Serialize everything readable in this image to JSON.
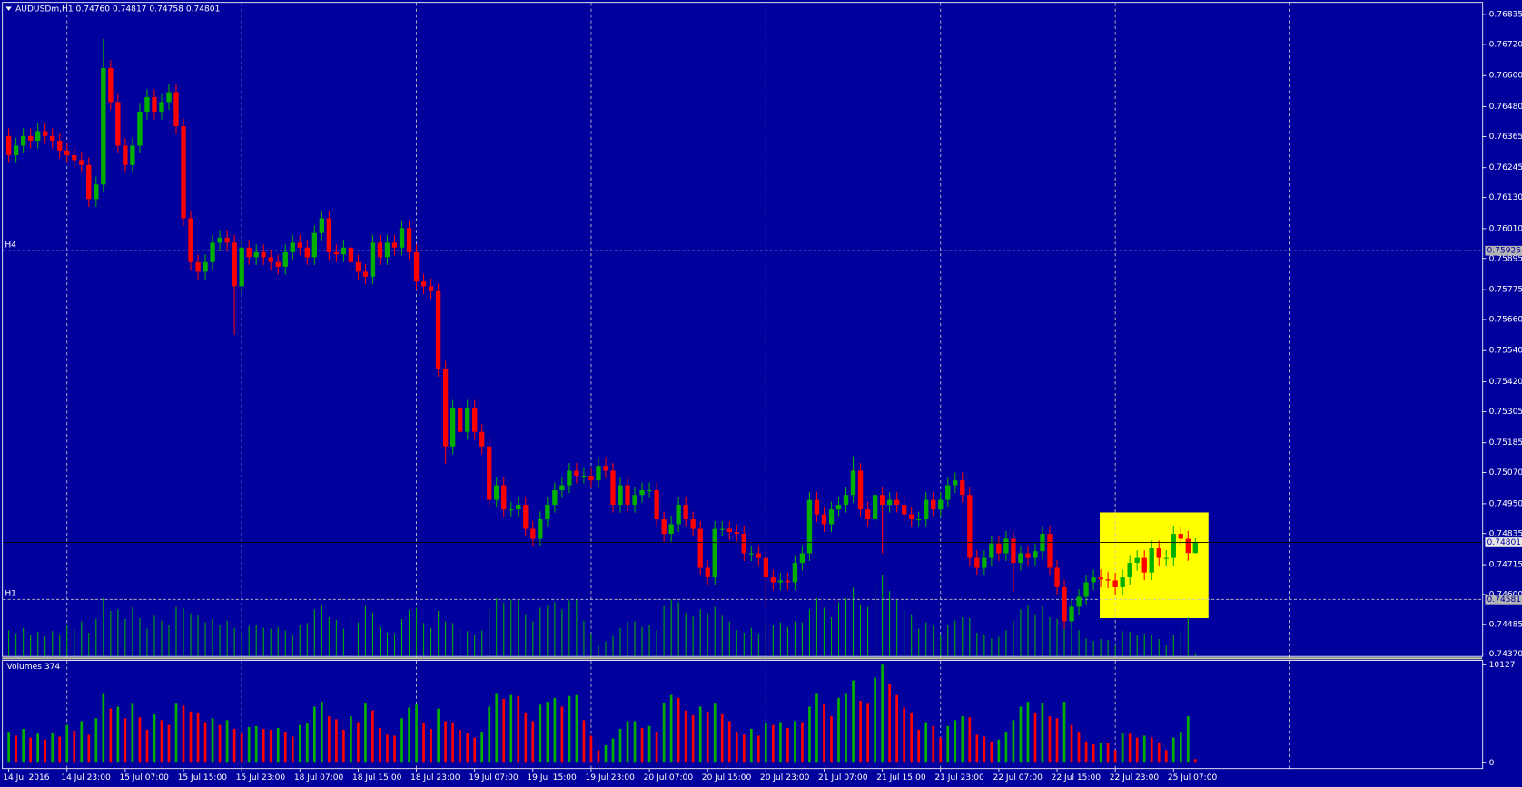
{
  "chart_data": {
    "type": "candlestick",
    "title": "AUDUSDm,H1  0.74760 0.74817 0.74758 0.74801",
    "categories": [
      "14 Jul 2016",
      null,
      null,
      null,
      null,
      null,
      null,
      null,
      "14 Jul 23:00",
      null,
      null,
      null,
      null,
      null,
      null,
      null,
      "15 Jul 07:00",
      null,
      null,
      null,
      null,
      null,
      null,
      null,
      "15 Jul 15:00",
      null,
      null,
      null,
      null,
      null,
      null,
      null,
      "15 Jul 23:00",
      null,
      null,
      null,
      null,
      null,
      null,
      null,
      "18 Jul 07:00",
      null,
      null,
      null,
      null,
      null,
      null,
      null,
      "18 Jul 15:00",
      null,
      null,
      null,
      null,
      null,
      null,
      null,
      "18 Jul 23:00",
      null,
      null,
      null,
      null,
      null,
      null,
      null,
      "19 Jul 07:00",
      null,
      null,
      null,
      null,
      null,
      null,
      null,
      "19 Jul 15:00",
      null,
      null,
      null,
      null,
      null,
      null,
      null,
      "19 Jul 23:00",
      null,
      null,
      null,
      null,
      null,
      null,
      null,
      "20 Jul 07:00",
      null,
      null,
      null,
      null,
      null,
      null,
      null,
      "20 Jul 15:00",
      null,
      null,
      null,
      null,
      null,
      null,
      null,
      "20 Jul 23:00",
      null,
      null,
      null,
      null,
      null,
      null,
      null,
      "21 Jul 07:00",
      null,
      null,
      null,
      null,
      null,
      null,
      null,
      "21 Jul 15:00",
      null,
      null,
      null,
      null,
      null,
      null,
      null,
      "21 Jul 23:00",
      null,
      null,
      null,
      null,
      null,
      null,
      null,
      "22 Jul 07:00",
      null,
      null,
      null,
      null,
      null,
      null,
      null,
      "22 Jul 15:00",
      null,
      null,
      null,
      null,
      null,
      null,
      null,
      "22 Jul 23:00",
      null,
      null,
      null,
      null,
      null,
      null,
      null,
      "25 Jul 07:00",
      null,
      null,
      null
    ],
    "open": [
      0.76367,
      0.76293,
      0.7633,
      0.76367,
      0.76349,
      0.76386,
      0.76367,
      0.76349,
      0.76311,
      0.76293,
      0.76274,
      0.76255,
      0.76124,
      0.7618,
      0.76629,
      0.76498,
      0.7633,
      0.76255,
      0.7633,
      0.76461,
      0.76517,
      0.76461,
      0.76498,
      0.76536,
      0.76405,
      0.7605,
      0.75881,
      0.75844,
      0.75881,
      0.75956,
      0.75975,
      0.75956,
      0.75788,
      0.75937,
      0.759,
      0.75919,
      0.759,
      0.75881,
      0.75863,
      0.75919,
      0.75956,
      0.75937,
      0.759,
      0.75993,
      0.7605,
      0.75919,
      0.75911,
      0.75937,
      0.75881,
      0.75844,
      0.75825,
      0.75956,
      0.759,
      0.75956,
      0.75937,
      0.76012,
      0.75919,
      0.75806,
      0.75788,
      0.75769,
      0.7547,
      0.75171,
      0.7532,
      0.75227,
      0.7532,
      0.75227,
      0.75171,
      0.74965,
      0.75021,
      0.74928,
      0.74928,
      0.74946,
      0.74853,
      0.74815,
      0.7489,
      0.74946,
      0.75002,
      0.75021,
      0.75077,
      0.75058,
      0.75058,
      0.7504,
      0.75096,
      0.75077,
      0.74946,
      0.75021,
      0.74946,
      0.74984,
      0.75002,
      0.75002,
      0.7489,
      0.74834,
      0.74871,
      0.74946,
      0.7489,
      0.74853,
      0.74703,
      0.74666,
      0.74853,
      0.74853,
      0.74841,
      0.74834,
      0.74759,
      0.74759,
      0.74741,
      0.74666,
      0.74647,
      0.74654,
      0.74647,
      0.74722,
      0.74759,
      0.74965,
      0.74909,
      0.74871,
      0.74928,
      0.74946,
      0.74984,
      0.75077,
      0.74928,
      0.7489,
      0.74984,
      0.74946,
      0.74965,
      0.74946,
      0.74909,
      0.7489,
      0.7489,
      0.74965,
      0.74928,
      0.74965,
      0.75021,
      0.7504,
      0.74984,
      0.74741,
      0.74703,
      0.74741,
      0.74797,
      0.74759,
      0.74815,
      0.74722,
      0.74759,
      0.74741,
      0.74767,
      0.74834,
      0.74703,
      0.74628,
      0.74497,
      0.74553,
      0.74591,
      0.74647,
      0.74666,
      0.74658,
      0.74654,
      0.74628,
      0.74666,
      0.74722,
      0.74741,
      0.74685,
      0.74778,
      0.74741,
      0.74741,
      0.74834,
      0.74815,
      0.7476
    ],
    "high": [
      0.76397,
      0.7636,
      0.76397,
      0.76397,
      0.76416,
      0.76416,
      0.76397,
      0.76379,
      0.76341,
      0.76323,
      0.76304,
      0.76285,
      0.7621,
      0.76741,
      0.76659,
      0.76528,
      0.7636,
      0.7636,
      0.76491,
      0.76547,
      0.76547,
      0.76528,
      0.76566,
      0.76566,
      0.76435,
      0.7608,
      0.75911,
      0.75911,
      0.75986,
      0.76005,
      0.76005,
      0.75986,
      0.75967,
      0.75967,
      0.75949,
      0.75949,
      0.7593,
      0.75911,
      0.75949,
      0.75986,
      0.75986,
      0.75967,
      0.76023,
      0.7608,
      0.7608,
      0.75949,
      0.75967,
      0.75967,
      0.75911,
      0.75874,
      0.75986,
      0.75986,
      0.75986,
      0.75986,
      0.76042,
      0.76042,
      0.75949,
      0.75836,
      0.75818,
      0.75799,
      0.755,
      0.7535,
      0.7535,
      0.7535,
      0.7535,
      0.75257,
      0.75201,
      0.75051,
      0.75051,
      0.74958,
      0.74976,
      0.74976,
      0.74883,
      0.7492,
      0.74976,
      0.75032,
      0.75051,
      0.75107,
      0.75107,
      0.75088,
      0.75088,
      0.75126,
      0.75126,
      0.75107,
      0.75051,
      0.75051,
      0.75014,
      0.75032,
      0.75032,
      0.75032,
      0.7492,
      0.74901,
      0.74976,
      0.74976,
      0.7492,
      0.74883,
      0.74733,
      0.74883,
      0.74883,
      0.74883,
      0.74871,
      0.74864,
      0.74789,
      0.74789,
      0.74771,
      0.74696,
      0.74684,
      0.74684,
      0.74752,
      0.74789,
      0.74995,
      0.74995,
      0.74939,
      0.74958,
      0.74976,
      0.75014,
      0.75133,
      0.75107,
      0.74958,
      0.75014,
      0.75014,
      0.74995,
      0.74995,
      0.74976,
      0.74939,
      0.7492,
      0.74995,
      0.74995,
      0.74995,
      0.75051,
      0.7507,
      0.7507,
      0.75014,
      0.74771,
      0.74771,
      0.74827,
      0.74827,
      0.74845,
      0.74845,
      0.74789,
      0.74789,
      0.74797,
      0.74864,
      0.74864,
      0.74733,
      0.74658,
      0.74583,
      0.74621,
      0.74677,
      0.74696,
      0.74696,
      0.74688,
      0.74684,
      0.74696,
      0.74752,
      0.74771,
      0.74771,
      0.74808,
      0.74808,
      0.74771,
      0.74864,
      0.74864,
      0.74845,
      0.74817
    ],
    "low": [
      0.76263,
      0.76263,
      0.763,
      0.76319,
      0.76319,
      0.76337,
      0.76319,
      0.76281,
      0.76263,
      0.76244,
      0.76225,
      0.76094,
      0.76094,
      0.7615,
      0.76468,
      0.763,
      0.76225,
      0.76225,
      0.763,
      0.76431,
      0.76431,
      0.76431,
      0.76468,
      0.76375,
      0.7602,
      0.75851,
      0.75814,
      0.75814,
      0.75851,
      0.75926,
      0.75926,
      0.75601,
      0.75758,
      0.7587,
      0.7587,
      0.7587,
      0.75851,
      0.75833,
      0.75833,
      0.75889,
      0.75907,
      0.7587,
      0.7587,
      0.75963,
      0.75889,
      0.75881,
      0.75881,
      0.75851,
      0.75814,
      0.75795,
      0.75795,
      0.7587,
      0.7587,
      0.75907,
      0.75907,
      0.75889,
      0.75776,
      0.75758,
      0.75739,
      0.7544,
      0.75104,
      0.75141,
      0.75197,
      0.75197,
      0.75197,
      0.75141,
      0.74935,
      0.74935,
      0.74898,
      0.74898,
      0.74898,
      0.74823,
      0.74785,
      0.74785,
      0.7486,
      0.74916,
      0.74972,
      0.74991,
      0.75028,
      0.75028,
      0.7501,
      0.7501,
      0.75047,
      0.74916,
      0.74916,
      0.74916,
      0.74916,
      0.74954,
      0.74972,
      0.7486,
      0.74804,
      0.74804,
      0.74841,
      0.7486,
      0.74823,
      0.74673,
      0.74636,
      0.74636,
      0.74823,
      0.74811,
      0.74804,
      0.74729,
      0.74729,
      0.74711,
      0.74553,
      0.74617,
      0.74617,
      0.74617,
      0.74617,
      0.74692,
      0.74729,
      0.74879,
      0.74841,
      0.74841,
      0.74898,
      0.74916,
      0.74954,
      0.74898,
      0.7486,
      0.7486,
      0.74759,
      0.74916,
      0.74916,
      0.74879,
      0.7486,
      0.7486,
      0.7486,
      0.74898,
      0.74898,
      0.74935,
      0.74991,
      0.74954,
      0.74711,
      0.74673,
      0.74673,
      0.74711,
      0.74729,
      0.74729,
      0.74609,
      0.74692,
      0.74711,
      0.74711,
      0.74737,
      0.74673,
      0.74598,
      0.74467,
      0.74467,
      0.74523,
      0.74561,
      0.74617,
      0.74628,
      0.74624,
      0.74598,
      0.74598,
      0.74636,
      0.74692,
      0.74655,
      0.74655,
      0.74711,
      0.74711,
      0.74711,
      0.74785,
      0.7473,
      0.74758
    ],
    "close": [
      0.76293,
      0.7633,
      0.76367,
      0.76349,
      0.76386,
      0.76367,
      0.76349,
      0.76311,
      0.76293,
      0.76274,
      0.76255,
      0.76124,
      0.7618,
      0.76629,
      0.76498,
      0.7633,
      0.76255,
      0.7633,
      0.76461,
      0.76517,
      0.76461,
      0.76498,
      0.76536,
      0.76405,
      0.7605,
      0.75881,
      0.75844,
      0.75881,
      0.75956,
      0.75975,
      0.75956,
      0.75788,
      0.75937,
      0.759,
      0.75919,
      0.759,
      0.75881,
      0.75863,
      0.75919,
      0.75956,
      0.75937,
      0.759,
      0.75993,
      0.7605,
      0.75919,
      0.75911,
      0.75937,
      0.75881,
      0.75844,
      0.75825,
      0.75956,
      0.759,
      0.75956,
      0.75937,
      0.76012,
      0.75919,
      0.75806,
      0.75788,
      0.75769,
      0.7547,
      0.75171,
      0.7532,
      0.75227,
      0.7532,
      0.75227,
      0.75171,
      0.74965,
      0.75021,
      0.74928,
      0.74928,
      0.74946,
      0.74853,
      0.74815,
      0.7489,
      0.74946,
      0.75002,
      0.75021,
      0.75077,
      0.75058,
      0.75058,
      0.7504,
      0.75096,
      0.75077,
      0.74946,
      0.75021,
      0.74946,
      0.74984,
      0.75002,
      0.75002,
      0.7489,
      0.74834,
      0.74871,
      0.74946,
      0.7489,
      0.74853,
      0.74703,
      0.74666,
      0.74853,
      0.74853,
      0.74841,
      0.74834,
      0.74759,
      0.74759,
      0.74741,
      0.74666,
      0.74647,
      0.74654,
      0.74647,
      0.74722,
      0.74759,
      0.74965,
      0.74909,
      0.74871,
      0.74928,
      0.74946,
      0.74984,
      0.75077,
      0.74928,
      0.7489,
      0.74984,
      0.74946,
      0.74965,
      0.74946,
      0.74909,
      0.7489,
      0.7489,
      0.74965,
      0.74928,
      0.74965,
      0.75021,
      0.7504,
      0.74984,
      0.74741,
      0.74703,
      0.74741,
      0.74797,
      0.74759,
      0.74815,
      0.74722,
      0.74759,
      0.74741,
      0.74767,
      0.74834,
      0.74703,
      0.74628,
      0.74497,
      0.74553,
      0.74591,
      0.74647,
      0.74666,
      0.74658,
      0.74654,
      0.74628,
      0.74666,
      0.74722,
      0.74741,
      0.74685,
      0.74778,
      0.74741,
      0.74741,
      0.74834,
      0.74815,
      0.7476,
      0.74801
    ],
    "up_color": "#00b000",
    "down_color": "#ff0000",
    "ylim": [
      0.74363,
      0.7688
    ],
    "yticks": [
      0.76835,
      {
        "value": 0.7672,
        "label": "0.76720"
      },
      {
        "value": 0.766,
        "label": "0.76600"
      },
      {
        "value": 0.7648,
        "label": "0.76480"
      },
      0.76365,
      0.76245,
      {
        "value": 0.7613,
        "label": "0.76130"
      },
      {
        "value": 0.7601,
        "label": "0.76010"
      },
      0.75895,
      0.75775,
      {
        "value": 0.7566,
        "label": "0.75660"
      },
      {
        "value": 0.7554,
        "label": "0.75540"
      },
      {
        "value": 0.7542,
        "label": "0.75420"
      },
      0.75305,
      0.75185,
      {
        "value": 0.7507,
        "label": "0.75070"
      },
      {
        "value": 0.7495,
        "label": "0.74950"
      },
      0.74835,
      0.74715,
      {
        "value": 0.746,
        "label": "0.74600"
      },
      0.74485,
      {
        "value": 0.7437,
        "label": "0.74370"
      }
    ],
    "levels": [
      {
        "name": "H4",
        "value": 0.75925,
        "label": "0.75925"
      },
      {
        "name": "H1",
        "value": 0.74581,
        "label": "0.74581"
      }
    ],
    "last_price": {
      "value": 0.74801,
      "label": "0.74801"
    },
    "volume": {
      "title": "Volumes 374",
      "values": [
        3200,
        2800,
        3500,
        2600,
        3000,
        2400,
        3100,
        2700,
        3900,
        3300,
        4300,
        2900,
        4600,
        7200,
        5600,
        5800,
        4600,
        6100,
        4700,
        3400,
        5000,
        4400,
        3900,
        6100,
        5900,
        5300,
        5100,
        4200,
        4600,
        3900,
        4400,
        3500,
        3000,
        3700,
        3800,
        3500,
        3400,
        3600,
        3200,
        2700,
        3900,
        4100,
        5800,
        6300,
        4800,
        4500,
        3400,
        4800,
        4200,
        6200,
        5400,
        3600,
        2900,
        2800,
        4600,
        5700,
        6000,
        4100,
        3500,
        5600,
        4300,
        4100,
        3400,
        3100,
        2600,
        3200,
        5800,
        7200,
        6600,
        7000,
        6900,
        5200,
        4300,
        6000,
        6300,
        6700,
        5800,
        6900,
        7000,
        4400,
        2800,
        1300,
        1800,
        2500,
        3500,
        4300,
        4300,
        3600,
        3800,
        3200,
        6200,
        7000,
        6700,
        5400,
        4900,
        5800,
        5300,
        6100,
        5000,
        4300,
        3200,
        2900,
        3500,
        2800,
        4100,
        3900,
        4200,
        3600,
        4300,
        4200,
        5800,
        7200,
        6000,
        4800,
        6700,
        7200,
        8500,
        6400,
        6100,
        8800,
        10127,
        8100,
        7000,
        5700,
        5200,
        3400,
        4200,
        3800,
        2600,
        3800,
        4400,
        4800,
        4700,
        2900,
        2700,
        2200,
        2400,
        3200,
        4400,
        5800,
        6300,
        5200,
        6200,
        4800,
        4600,
        6300,
        3900,
        3200,
        2200,
        1900,
        2100,
        2000,
        1300,
        3100,
        3000,
        2600,
        2800,
        2600,
        2100,
        1300,
        2600,
        3200,
        4800,
        374
      ],
      "ylim": [
        0,
        10127
      ],
      "yticks": [
        0,
        10127
      ]
    }
  }
}
